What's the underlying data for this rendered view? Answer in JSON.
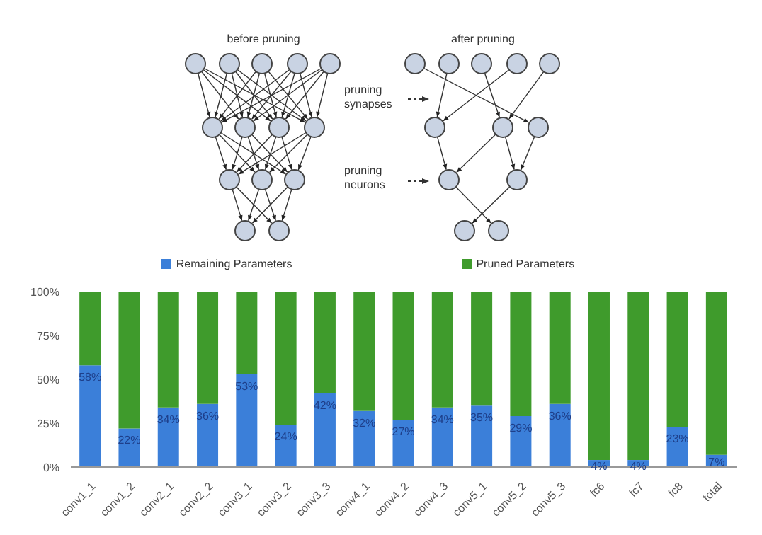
{
  "chart_data": {
    "type": "bar",
    "stacked": true,
    "annotations": [
      "before pruning",
      "after pruning",
      "pruning synapses",
      "pruning neurons"
    ],
    "categories": [
      "conv1_1",
      "conv1_2",
      "conv2_1",
      "conv2_2",
      "conv3_1",
      "conv3_2",
      "conv3_3",
      "conv4_1",
      "conv4_2",
      "conv4_3",
      "conv5_1",
      "conv5_2",
      "conv5_3",
      "fc6",
      "fc7",
      "fc8",
      "total"
    ],
    "series": [
      {
        "name": "Remaining Parameters",
        "color": "#3b7fd9",
        "values": [
          58,
          22,
          34,
          36,
          53,
          24,
          42,
          32,
          27,
          34,
          35,
          29,
          36,
          4,
          4,
          23,
          7
        ],
        "value_labels": [
          "58%",
          "22%",
          "34%",
          "36%",
          "53%",
          "24%",
          "42%",
          "32%",
          "27%",
          "34%",
          "35%",
          "29%",
          "36%",
          "4%",
          "4%",
          "23%",
          "7%"
        ]
      },
      {
        "name": "Pruned Parameters",
        "color": "#3f9b2c",
        "values": [
          42,
          78,
          66,
          64,
          47,
          76,
          58,
          68,
          73,
          66,
          65,
          71,
          64,
          96,
          96,
          77,
          93
        ]
      }
    ],
    "ylim": [
      0,
      100
    ],
    "yticks": [
      {
        "value": 0,
        "label": "0%"
      },
      {
        "value": 25,
        "label": "25%"
      },
      {
        "value": 50,
        "label": "50%"
      },
      {
        "value": 75,
        "label": "75%"
      },
      {
        "value": 100,
        "label": "100%"
      }
    ],
    "legend": "top"
  }
}
